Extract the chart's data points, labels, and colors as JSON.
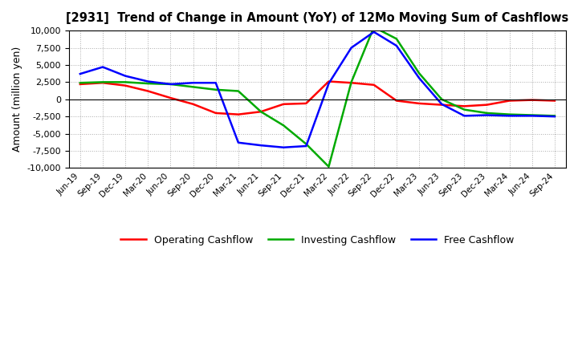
{
  "title": "[2931]  Trend of Change in Amount (YoY) of 12Mo Moving Sum of Cashflows",
  "ylabel": "Amount (million yen)",
  "xlabels": [
    "Jun-19",
    "Sep-19",
    "Dec-19",
    "Mar-20",
    "Jun-20",
    "Sep-20",
    "Dec-20",
    "Mar-21",
    "Jun-21",
    "Sep-21",
    "Dec-21",
    "Mar-22",
    "Jun-22",
    "Sep-22",
    "Dec-22",
    "Mar-23",
    "Jun-23",
    "Sep-23",
    "Dec-23",
    "Mar-24",
    "Jun-24",
    "Sep-24"
  ],
  "operating": [
    2200,
    2400,
    2000,
    1200,
    200,
    -700,
    -2000,
    -2200,
    -1800,
    -700,
    -600,
    2600,
    2400,
    2100,
    -200,
    -600,
    -800,
    -1000,
    -800,
    -200,
    -100,
    -200
  ],
  "investing": [
    2400,
    2500,
    2500,
    2300,
    2200,
    1800,
    1400,
    1200,
    -1800,
    -3800,
    -6500,
    -9800,
    2500,
    10500,
    8800,
    3800,
    0,
    -1500,
    -2000,
    -2200,
    -2300,
    -2400
  ],
  "free": [
    3700,
    4700,
    3400,
    2600,
    2200,
    2400,
    2400,
    -6300,
    -6700,
    -7000,
    -6800,
    2300,
    7500,
    9800,
    7800,
    3100,
    -700,
    -2400,
    -2300,
    -2400,
    -2400,
    -2500
  ],
  "operating_color": "#ff0000",
  "investing_color": "#00aa00",
  "free_color": "#0000ff",
  "ylim": [
    -10000,
    10000
  ],
  "yticks": [
    -10000,
    -7500,
    -5000,
    -2500,
    0,
    2500,
    5000,
    7500,
    10000
  ],
  "bg_color": "#ffffff",
  "plot_bg_color": "#ffffff",
  "grid_color": "#888888",
  "legend_labels": [
    "Operating Cashflow",
    "Investing Cashflow",
    "Free Cashflow"
  ]
}
